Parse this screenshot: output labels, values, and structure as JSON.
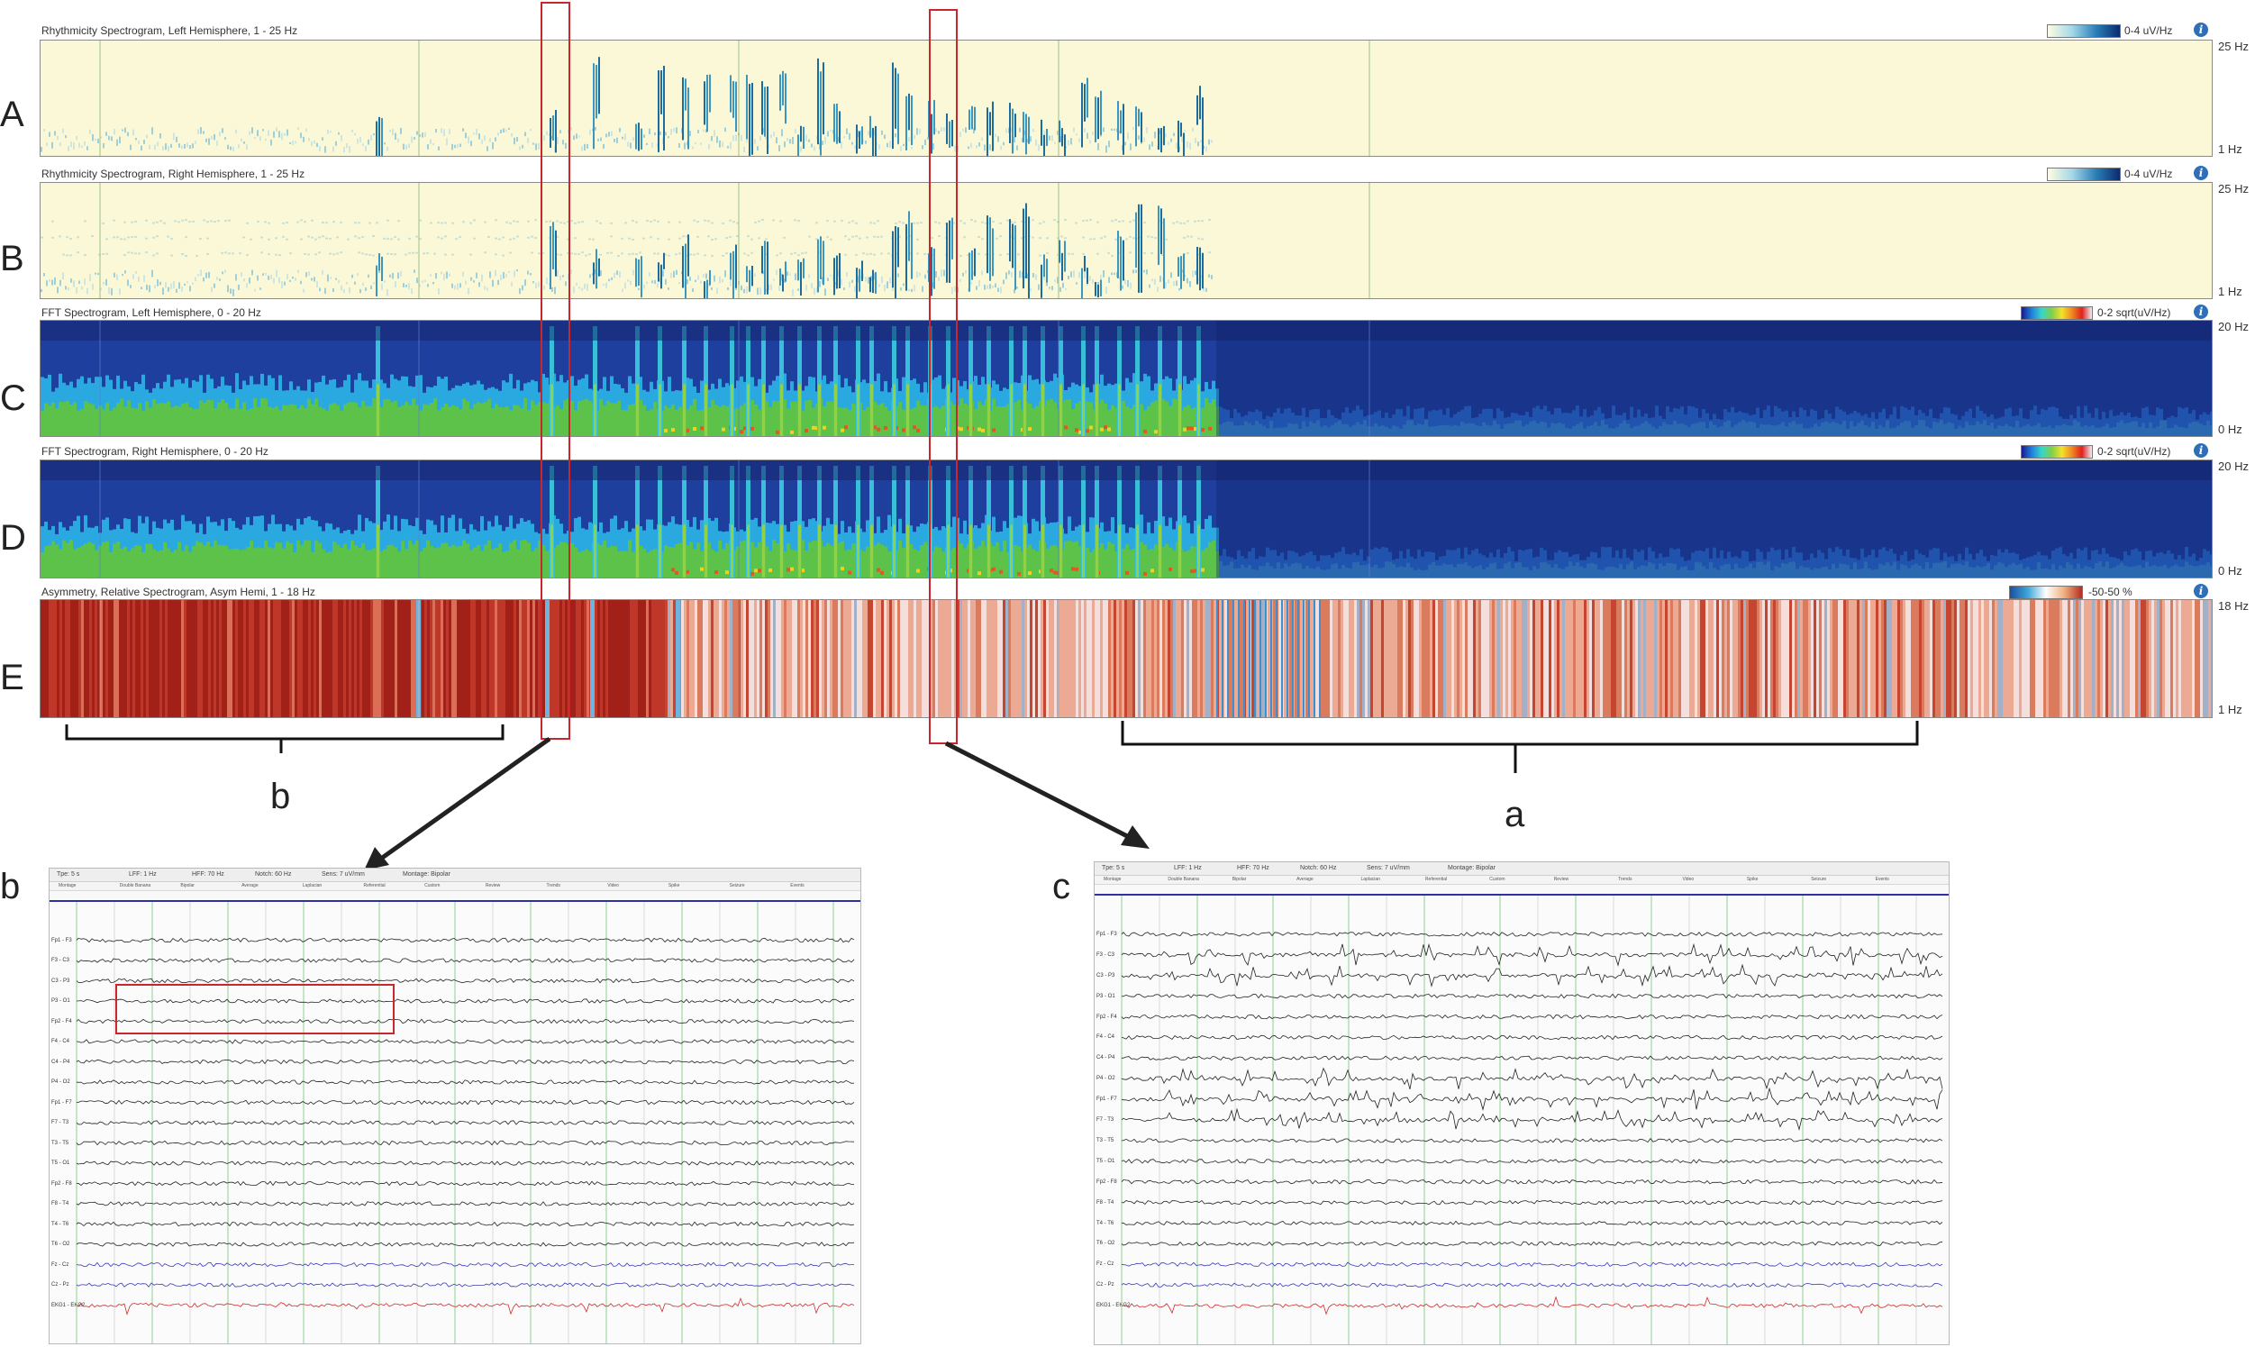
{
  "panels": [
    {
      "letter": "A",
      "title": "Rhythmicity Spectrogram, Left Hemisphere, 1 - 25 Hz",
      "scale": "0-4 uV/Hz",
      "top_label": "25 Hz",
      "bottom_label": "1 Hz",
      "colormap": "rhythm"
    },
    {
      "letter": "B",
      "title": "Rhythmicity Spectrogram, Right Hemisphere, 1 - 25 Hz",
      "scale": "0-4 uV/Hz",
      "top_label": "25 Hz",
      "bottom_label": "1 Hz",
      "colormap": "rhythm"
    },
    {
      "letter": "C",
      "title": "FFT Spectrogram, Left Hemisphere, 0 - 20 Hz",
      "scale": "0-2 sqrt(uV/Hz)",
      "top_label": "20 Hz",
      "bottom_label": "0 Hz",
      "colormap": "fft"
    },
    {
      "letter": "D",
      "title": "FFT Spectrogram, Right Hemisphere, 0 - 20 Hz",
      "scale": "0-2 sqrt(uV/Hz)",
      "top_label": "20 Hz",
      "bottom_label": "0 Hz",
      "colormap": "fft"
    },
    {
      "letter": "E",
      "title": "Asymmetry, Relative Spectrogram, Asym Hemi, 1 - 18 Hz",
      "scale": "-50-50 %",
      "top_label": "18 Hz",
      "bottom_label": "1 Hz",
      "colormap": "asym"
    }
  ],
  "info_icon_glyph": "i",
  "annotations": {
    "bracket_left_label": "b",
    "bracket_right_label": "a",
    "inset_left_label": "b",
    "inset_right_label": "c"
  },
  "eeg_toolbar": {
    "items": [
      "Tpe: 5 s",
      "LFF: 1 Hz",
      "HFF: 70 Hz",
      "Notch: 60 Hz",
      "Sens: 7 uV/mm",
      "Montage: Bipolar"
    ],
    "tabs": [
      "Montage",
      "Double Banana",
      "Bipolar",
      "Average",
      "Laplacian",
      "Referential",
      "Custom",
      "Review",
      "Trends",
      "Video",
      "Spike",
      "Seizure",
      "Events"
    ]
  },
  "channels_left": [
    "Fp1 - F3",
    "F3 - C3",
    "C3 - P3",
    "P3 - O1",
    "Fp2 - F4",
    "F4 - C4",
    "C4 - P4",
    "P4 - O2",
    "Fp1 - F7",
    "F7 - T3",
    "T3 - T5",
    "T5 - O1",
    "Fp2 - F8",
    "F8 - T4",
    "T4 - T6",
    "T6 - O2",
    "Fz - Cz",
    "Cz - Pz",
    "EKG1 - EKG2"
  ],
  "colors": {
    "rhythm_bg": "#fbf8d8",
    "fft_bg": "#1f3f9e",
    "asym_bg": "#b82c20",
    "selection": "#c8282d",
    "eeg_trace": "#222222",
    "eeg_ekg": "#d22a2a",
    "eeg_eye": "#3a3ab8"
  }
}
